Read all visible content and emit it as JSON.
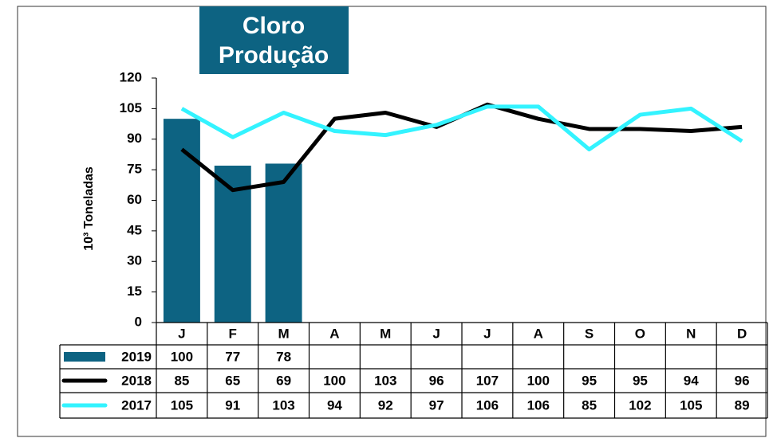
{
  "chart_data": {
    "type": "bar",
    "title": "Cloro",
    "subtitle": "Produção",
    "ylabel": "10³ Toneladas",
    "categories": [
      "J",
      "F",
      "M",
      "A",
      "M",
      "J",
      "J",
      "A",
      "S",
      "O",
      "N",
      "D"
    ],
    "series": [
      {
        "name": "2019",
        "type": "bar",
        "color": "#0d6382",
        "values": [
          100,
          77,
          78,
          null,
          null,
          null,
          null,
          null,
          null,
          null,
          null,
          null
        ]
      },
      {
        "name": "2018",
        "type": "line",
        "color": "#000000",
        "values": [
          85,
          65,
          69,
          100,
          103,
          96,
          107,
          100,
          95,
          95,
          94,
          96
        ]
      },
      {
        "name": "2017",
        "type": "line",
        "color": "#33f3ff",
        "values": [
          105,
          91,
          103,
          94,
          92,
          97,
          106,
          106,
          85,
          102,
          105,
          89
        ]
      }
    ],
    "ylim": [
      0,
      120
    ],
    "yticks": [
      0,
      15,
      30,
      45,
      60,
      75,
      90,
      105,
      120
    ]
  }
}
